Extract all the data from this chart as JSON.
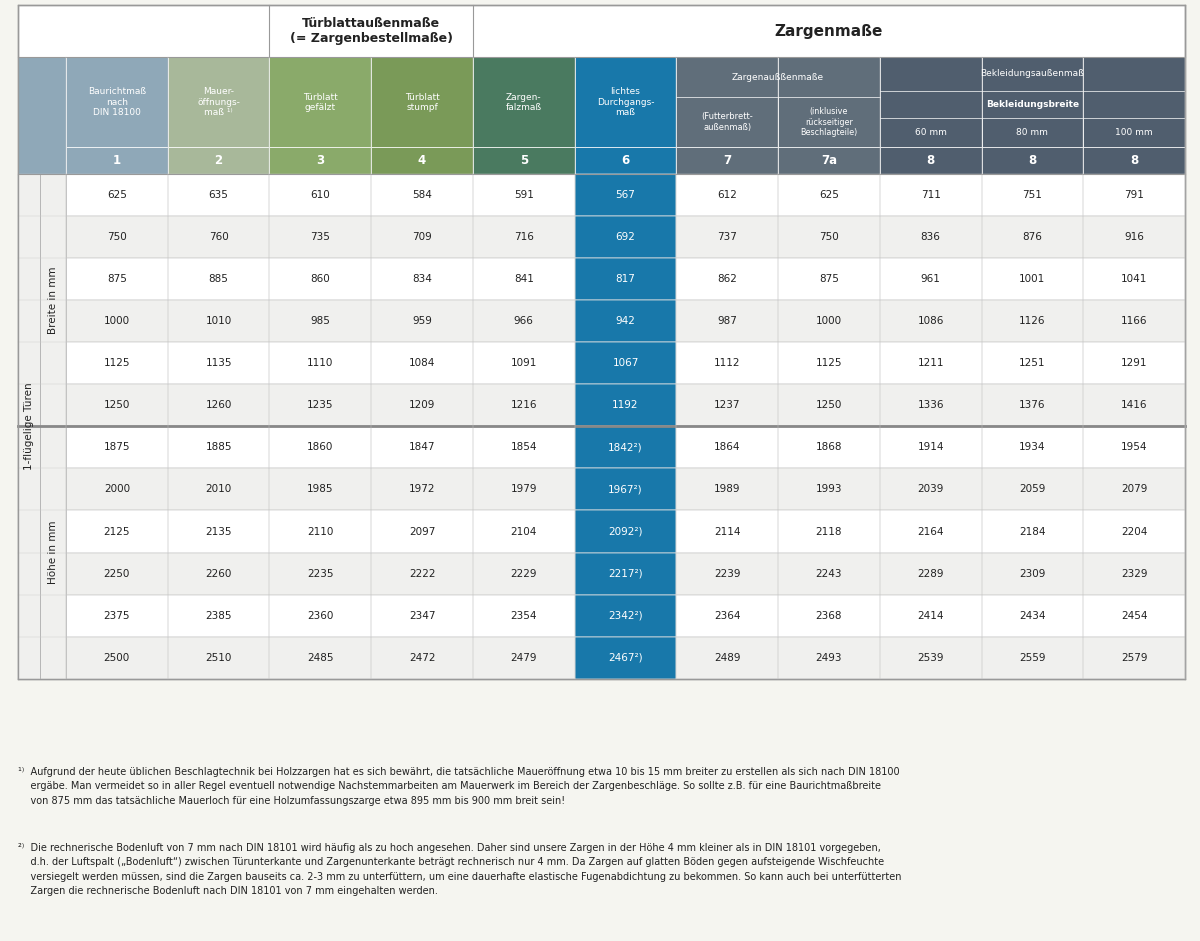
{
  "title_turblatt": "Türblattaußenmaße\n(= Zargenbestellmaße)",
  "title_zargen": "Zargenmaße",
  "col_numbers": [
    "1",
    "2",
    "3",
    "4",
    "5",
    "6",
    "7",
    "7a",
    "8",
    "8",
    "8"
  ],
  "breite_data": [
    [
      "625",
      "635",
      "610",
      "584",
      "591",
      "567",
      "612",
      "625",
      "711",
      "751",
      "791"
    ],
    [
      "750",
      "760",
      "735",
      "709",
      "716",
      "692",
      "737",
      "750",
      "836",
      "876",
      "916"
    ],
    [
      "875",
      "885",
      "860",
      "834",
      "841",
      "817",
      "862",
      "875",
      "961",
      "1001",
      "1041"
    ],
    [
      "1000",
      "1010",
      "985",
      "959",
      "966",
      "942",
      "987",
      "1000",
      "1086",
      "1126",
      "1166"
    ],
    [
      "1125",
      "1135",
      "1110",
      "1084",
      "1091",
      "1067",
      "1112",
      "1125",
      "1211",
      "1251",
      "1291"
    ],
    [
      "1250",
      "1260",
      "1235",
      "1209",
      "1216",
      "1192",
      "1237",
      "1250",
      "1336",
      "1376",
      "1416"
    ]
  ],
  "hoehe_data": [
    [
      "1875",
      "1885",
      "1860",
      "1847",
      "1854",
      "1842²)",
      "1864",
      "1868",
      "1914",
      "1934",
      "1954"
    ],
    [
      "2000",
      "2010",
      "1985",
      "1972",
      "1979",
      "1967²)",
      "1989",
      "1993",
      "2039",
      "2059",
      "2079"
    ],
    [
      "2125",
      "2135",
      "2110",
      "2097",
      "2104",
      "2092²)",
      "2114",
      "2118",
      "2164",
      "2184",
      "2204"
    ],
    [
      "2250",
      "2260",
      "2235",
      "2222",
      "2229",
      "2217²)",
      "2239",
      "2243",
      "2289",
      "2309",
      "2329"
    ],
    [
      "2375",
      "2385",
      "2360",
      "2347",
      "2354",
      "2342²)",
      "2364",
      "2368",
      "2414",
      "2434",
      "2454"
    ],
    [
      "2500",
      "2510",
      "2485",
      "2472",
      "2479",
      "2467²)",
      "2489",
      "2493",
      "2539",
      "2559",
      "2579"
    ]
  ],
  "col1_color": "#8fa8b8",
  "col2_color": "#a8b89a",
  "col3_color": "#8aaa6a",
  "col4_color": "#7a9a58",
  "col5_color": "#4a7a60",
  "col6_color": "#1878aa",
  "col7_color": "#606e7a",
  "col8_color": "#505e6e",
  "side_bg": "#f0f0ee",
  "row_even": "#ffffff",
  "row_odd": "#f0f0ee"
}
